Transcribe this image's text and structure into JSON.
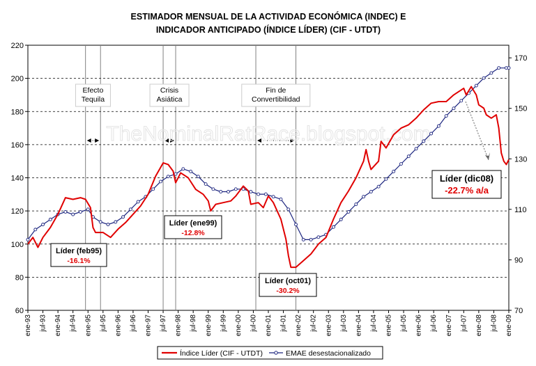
{
  "chart_data": {
    "type": "line",
    "title_lines": [
      "ESTIMADOR MENSUAL DE LA ACTIVIDAD ECONÓMICA (INDEC) E",
      "INDICADOR ANTICIPADO (ÍNDICE LÍDER) (CIF - UTDT)"
    ],
    "watermark": "TheNominalRatRace.blogspot.com",
    "x_tick_labels": [
      "ene-93",
      "jul-93",
      "ene-94",
      "jul-94",
      "ene-95",
      "jul-95",
      "ene-96",
      "jul-96",
      "ene-97",
      "jul-97",
      "ene-98",
      "jul-98",
      "ene-99",
      "jul-99",
      "ene-00",
      "jul-00",
      "ene-01",
      "jul-01",
      "ene-02",
      "jul-02",
      "ene-03",
      "jul-03",
      "ene-04",
      "jul-04",
      "ene-05",
      "jul-05",
      "ene-06",
      "jul-06",
      "ene-07",
      "jul-07",
      "ene-08",
      "jul-08",
      "ene-09"
    ],
    "y_left": {
      "ylim": [
        60,
        220
      ],
      "ticks": [
        60,
        80,
        100,
        120,
        140,
        160,
        180,
        200,
        220
      ]
    },
    "y_right": {
      "ylim": [
        70,
        175
      ],
      "ticks": [
        70,
        90,
        110,
        130,
        150,
        170
      ]
    },
    "grid": "horizontal-dashed",
    "legend_position": "bottom",
    "colors": {
      "lider": "#e00000",
      "emae": "#1a237e"
    },
    "series": [
      {
        "name": "Índice Líder (CIF - UTDT)",
        "axis": "left",
        "style": "line",
        "points": [
          [
            "ene-93",
            100
          ],
          [
            "mar-93",
            104
          ],
          [
            "may-93",
            98
          ],
          [
            "jul-93",
            104
          ],
          [
            "oct-93",
            110
          ],
          [
            "ene-94",
            118
          ],
          [
            "abr-94",
            128
          ],
          [
            "jul-94",
            127
          ],
          [
            "oct-94",
            128
          ],
          [
            "dic-94",
            127
          ],
          [
            "feb-95",
            122
          ],
          [
            "mar-95",
            110
          ],
          [
            "abr-95",
            107
          ],
          [
            "jul-95",
            107
          ],
          [
            "oct-95",
            104
          ],
          [
            "ene-96",
            109
          ],
          [
            "abr-96",
            113
          ],
          [
            "jul-96",
            118
          ],
          [
            "oct-96",
            123
          ],
          [
            "ene-97",
            130
          ],
          [
            "abr-97",
            141
          ],
          [
            "jul-97",
            149
          ],
          [
            "sep-97",
            148
          ],
          [
            "nov-97",
            144
          ],
          [
            "dic-97",
            137
          ],
          [
            "feb-98",
            143
          ],
          [
            "may-98",
            140
          ],
          [
            "ago-98",
            133
          ],
          [
            "nov-98",
            130
          ],
          [
            "ene-99",
            126
          ],
          [
            "feb-99",
            120
          ],
          [
            "abr-99",
            124
          ],
          [
            "jul-99",
            125
          ],
          [
            "oct-99",
            126
          ],
          [
            "dic-99",
            129
          ],
          [
            "mar-00",
            135
          ],
          [
            "may-00",
            132
          ],
          [
            "jun-00",
            124
          ],
          [
            "sep-00",
            125
          ],
          [
            "nov-00",
            122
          ],
          [
            "ene-01",
            129
          ],
          [
            "mar-01",
            125
          ],
          [
            "jun-01",
            115
          ],
          [
            "ago-01",
            103
          ],
          [
            "sep-01",
            93
          ],
          [
            "oct-01",
            86
          ],
          [
            "dic-01",
            86
          ],
          [
            "mar-02",
            90
          ],
          [
            "jun-02",
            94
          ],
          [
            "sep-02",
            100
          ],
          [
            "dic-02",
            104
          ],
          [
            "mar-03",
            115
          ],
          [
            "jun-03",
            125
          ],
          [
            "sep-03",
            132
          ],
          [
            "dic-03",
            140
          ],
          [
            "mar-04",
            150
          ],
          [
            "abr-04",
            157
          ],
          [
            "may-04",
            150
          ],
          [
            "jun-04",
            145
          ],
          [
            "sep-04",
            150
          ],
          [
            "oct-04",
            162
          ],
          [
            "dic-04",
            158
          ],
          [
            "mar-05",
            166
          ],
          [
            "jun-05",
            170
          ],
          [
            "sep-05",
            172
          ],
          [
            "dic-05",
            176
          ],
          [
            "mar-06",
            181
          ],
          [
            "jun-06",
            185
          ],
          [
            "sep-06",
            186
          ],
          [
            "dic-06",
            186
          ],
          [
            "mar-07",
            190
          ],
          [
            "jun-07",
            193
          ],
          [
            "jul-07",
            194
          ],
          [
            "ago-07",
            190
          ],
          [
            "oct-07",
            195
          ],
          [
            "dic-07",
            190
          ],
          [
            "ene-08",
            184
          ],
          [
            "mar-08",
            182
          ],
          [
            "abr-08",
            178
          ],
          [
            "jun-08",
            176
          ],
          [
            "jul-08",
            177
          ],
          [
            "ago-08",
            178
          ],
          [
            "sep-08",
            170
          ],
          [
            "oct-08",
            155
          ],
          [
            "nov-08",
            150
          ],
          [
            "dic-08",
            148
          ],
          [
            "ene-09",
            151
          ]
        ]
      },
      {
        "name": "EMAE desestacionalizado",
        "axis": "right",
        "style": "line-markers",
        "points": [
          [
            "ene-93",
            98
          ],
          [
            "abr-93",
            102
          ],
          [
            "jul-93",
            104
          ],
          [
            "oct-93",
            106
          ],
          [
            "ene-94",
            108
          ],
          [
            "abr-94",
            109
          ],
          [
            "jul-94",
            108
          ],
          [
            "oct-94",
            109
          ],
          [
            "ene-95",
            110
          ],
          [
            "mar-95",
            107
          ],
          [
            "jun-95",
            105
          ],
          [
            "sep-95",
            104
          ],
          [
            "dic-95",
            105
          ],
          [
            "mar-96",
            107
          ],
          [
            "jun-96",
            110
          ],
          [
            "sep-96",
            113
          ],
          [
            "dic-96",
            115
          ],
          [
            "mar-97",
            118
          ],
          [
            "jun-97",
            121
          ],
          [
            "sep-97",
            123
          ],
          [
            "dic-97",
            124
          ],
          [
            "mar-98",
            126
          ],
          [
            "jun-98",
            125
          ],
          [
            "sep-98",
            123
          ],
          [
            "dic-98",
            120
          ],
          [
            "mar-99",
            118
          ],
          [
            "jun-99",
            117
          ],
          [
            "sep-99",
            117
          ],
          [
            "dic-99",
            118
          ],
          [
            "mar-00",
            118
          ],
          [
            "jun-00",
            117
          ],
          [
            "sep-00",
            116
          ],
          [
            "dic-00",
            116
          ],
          [
            "mar-01",
            115
          ],
          [
            "jun-01",
            114
          ],
          [
            "sep-01",
            110
          ],
          [
            "dic-01",
            104
          ],
          [
            "mar-02",
            98
          ],
          [
            "jun-02",
            98
          ],
          [
            "sep-02",
            99
          ],
          [
            "dic-02",
            100
          ],
          [
            "mar-03",
            103
          ],
          [
            "jun-03",
            106
          ],
          [
            "sep-03",
            109
          ],
          [
            "dic-03",
            112
          ],
          [
            "mar-04",
            115
          ],
          [
            "jun-04",
            117
          ],
          [
            "sep-04",
            119
          ],
          [
            "dic-04",
            122
          ],
          [
            "mar-05",
            125
          ],
          [
            "jun-05",
            128
          ],
          [
            "sep-05",
            131
          ],
          [
            "dic-05",
            134
          ],
          [
            "mar-06",
            137
          ],
          [
            "jun-06",
            140
          ],
          [
            "sep-06",
            143
          ],
          [
            "dic-06",
            147
          ],
          [
            "mar-07",
            150
          ],
          [
            "jun-07",
            153
          ],
          [
            "sep-07",
            156
          ],
          [
            "dic-07",
            159
          ],
          [
            "mar-08",
            162
          ],
          [
            "jun-08",
            164
          ],
          [
            "sep-08",
            166
          ],
          [
            "dic-08",
            166
          ],
          [
            "ene-09",
            166
          ]
        ]
      }
    ],
    "events": [
      {
        "label_lines": [
          "Efecto",
          "Tequila"
        ],
        "start": "dic-94",
        "end": "jun-95"
      },
      {
        "label_lines": [
          "Crisis",
          "Asiática"
        ],
        "start": "jul-97",
        "end": "dic-97"
      },
      {
        "label_lines": [
          "Fin de",
          "Convertibilidad"
        ],
        "start": "ago-00",
        "end": "dic-01"
      }
    ],
    "annotations": [
      {
        "title": "Líder (feb95)",
        "value": "-16.1%"
      },
      {
        "title": "Líder (ene99)",
        "value": "-12.8%"
      },
      {
        "title": "Líder (oct01)",
        "value": "-30.2%"
      },
      {
        "title": "Líder (dic08)",
        "value": "-22.7% a/a"
      }
    ]
  }
}
